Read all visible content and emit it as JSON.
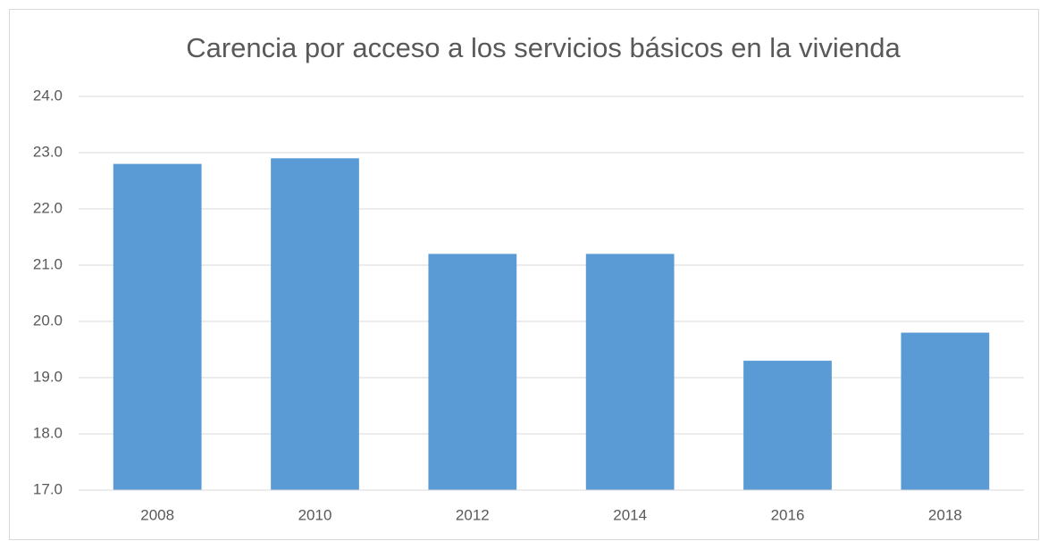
{
  "chart_data": {
    "type": "bar",
    "title": "Carencia por acceso a los servicios básicos en la vivienda",
    "categories": [
      "2008",
      "2010",
      "2012",
      "2014",
      "2016",
      "2018"
    ],
    "values": [
      22.8,
      22.9,
      21.2,
      21.2,
      19.3,
      19.8
    ],
    "color": "#5b9bd5",
    "ylim": [
      17,
      24
    ],
    "yticks": [
      {
        "value": 17,
        "label": "17.0"
      },
      {
        "value": 18,
        "label": "18.0"
      },
      {
        "value": 19,
        "label": "19.0"
      },
      {
        "value": 20,
        "label": "20.0"
      },
      {
        "value": 21,
        "label": "21.0"
      },
      {
        "value": 22,
        "label": "22.0"
      },
      {
        "value": 23,
        "label": "23.0"
      },
      {
        "value": 24,
        "label": "24.0"
      }
    ],
    "grid": true
  }
}
